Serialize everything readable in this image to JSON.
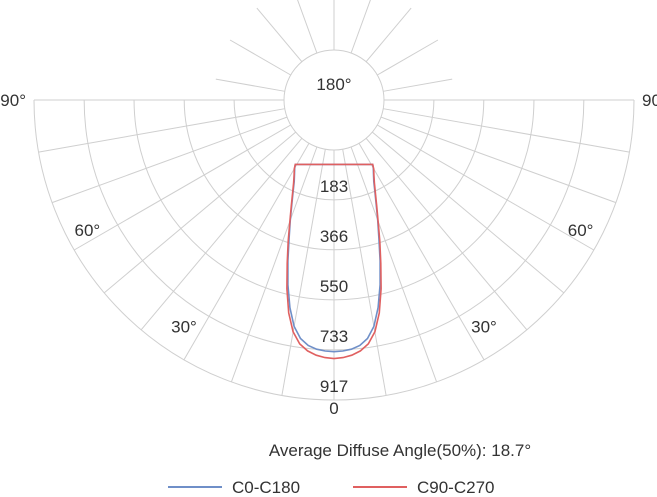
{
  "chart_data": {
    "type": "polar-line",
    "title": "",
    "top_label": "180°",
    "bottom_label": "0",
    "angle_labels": [
      {
        "angle": 90,
        "text": "90°"
      },
      {
        "angle": 60,
        "text": "60°"
      },
      {
        "angle": 30,
        "text": "30°"
      }
    ],
    "radial_ticks": [
      "183",
      "366",
      "550",
      "733",
      "917"
    ],
    "radial_tick_values": [
      183,
      366,
      550,
      733,
      917
    ],
    "r_max": 917,
    "angle_range": [
      -90,
      90
    ],
    "grid": true,
    "series": [
      {
        "name": "C0-C180",
        "color": "#6f8fc8",
        "points": [
          [
            0,
            740
          ],
          [
            2,
            738
          ],
          [
            4,
            733
          ],
          [
            6,
            722
          ],
          [
            8,
            700
          ],
          [
            10,
            660
          ],
          [
            12,
            595
          ],
          [
            14,
            515
          ],
          [
            16,
            430
          ],
          [
            18,
            350
          ],
          [
            20,
            285
          ],
          [
            22,
            230
          ],
          [
            24,
            185
          ],
          [
            26,
            150
          ],
          [
            28,
            125
          ],
          [
            30,
            105
          ],
          [
            31,
            92
          ]
        ]
      },
      {
        "name": "C90-C270",
        "color": "#e06060",
        "points": [
          [
            0,
            765
          ],
          [
            2,
            762
          ],
          [
            4,
            755
          ],
          [
            6,
            742
          ],
          [
            8,
            720
          ],
          [
            10,
            680
          ],
          [
            12,
            615
          ],
          [
            14,
            530
          ],
          [
            16,
            440
          ],
          [
            18,
            360
          ],
          [
            20,
            290
          ],
          [
            22,
            235
          ],
          [
            24,
            190
          ],
          [
            26,
            155
          ],
          [
            28,
            128
          ],
          [
            30,
            108
          ],
          [
            31,
            92
          ]
        ]
      }
    ],
    "annotation": "Average Diffuse Angle(50%): 18.7°",
    "legend_position": "bottom"
  }
}
